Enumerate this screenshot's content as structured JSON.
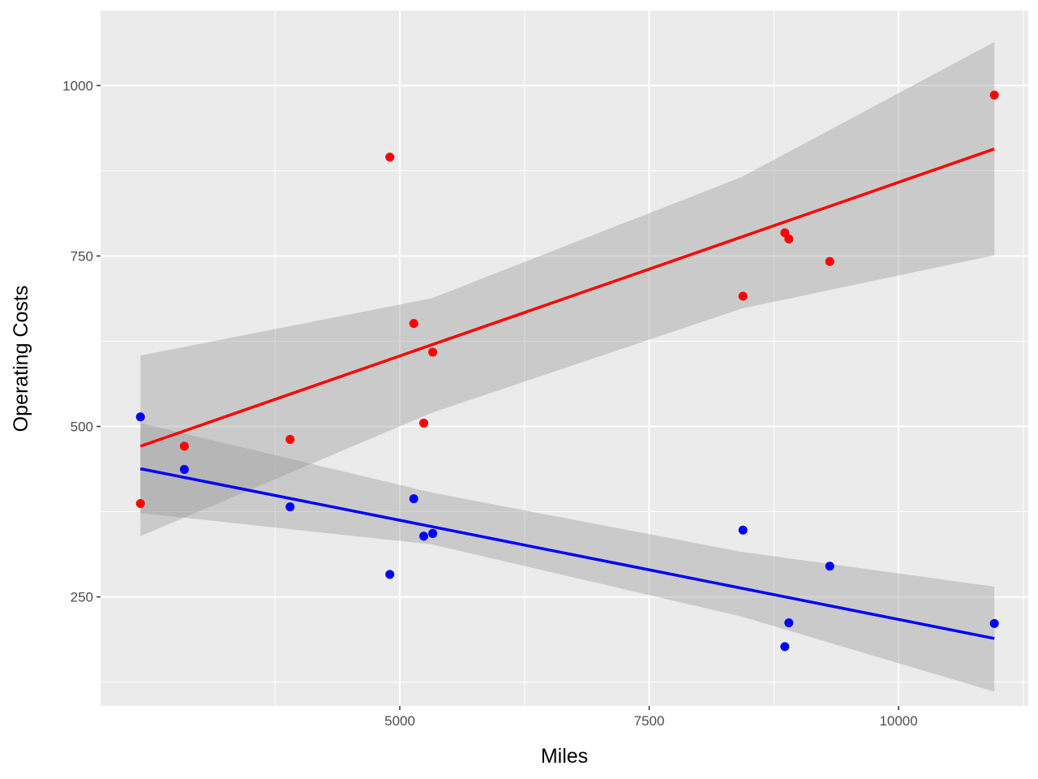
{
  "chart_data": {
    "type": "scatter",
    "title": "",
    "xlabel": "Miles",
    "ylabel": "Operating Costs",
    "xlim": [
      2000,
      11300
    ],
    "ylim": [
      90,
      1110
    ],
    "x_ticks": [
      5000,
      7500,
      10000
    ],
    "x_tick_labels": [
      "5000",
      "7500",
      "10000"
    ],
    "y_ticks": [
      250,
      500,
      750,
      1000
    ],
    "y_tick_labels": [
      "250",
      "500",
      "750",
      "1000"
    ],
    "grid": true,
    "panel_background": "#ebebeb",
    "band_color": "#999999",
    "series": [
      {
        "name": "red",
        "color": "#ff0000",
        "x": [
          2400,
          2840,
          3900,
          4900,
          5140,
          5240,
          5330,
          8440,
          8860,
          8900,
          9310,
          10960
        ],
        "y": [
          387,
          471,
          481,
          895,
          651,
          505,
          609,
          691,
          784,
          775,
          742,
          986
        ],
        "fit": {
          "x": [
            2400,
            10960
          ],
          "y": [
            471,
            907
          ]
        },
        "band_upper": {
          "x": [
            2400,
            5320,
            8430,
            10960
          ],
          "y": [
            604,
            688,
            866,
            1064
          ]
        },
        "band_lower": {
          "x": [
            2400,
            5320,
            8430,
            10960
          ],
          "y": [
            339,
            520,
            673,
            751
          ]
        }
      },
      {
        "name": "blue",
        "color": "#0000ff",
        "x": [
          2400,
          2840,
          3900,
          4900,
          5140,
          5240,
          5330,
          8440,
          8860,
          8900,
          9310,
          10960
        ],
        "y": [
          514,
          437,
          382,
          283,
          394,
          339,
          343,
          348,
          177,
          212,
          295,
          211
        ],
        "fit": {
          "x": [
            2400,
            10960
          ],
          "y": [
            438,
            189
          ]
        },
        "band_upper": {
          "x": [
            2400,
            5320,
            8430,
            10960
          ],
          "y": [
            505,
            403,
            316,
            265
          ]
        },
        "band_lower": {
          "x": [
            2400,
            5320,
            8430,
            10960
          ],
          "y": [
            373,
            327,
            221,
            111
          ]
        }
      }
    ]
  }
}
